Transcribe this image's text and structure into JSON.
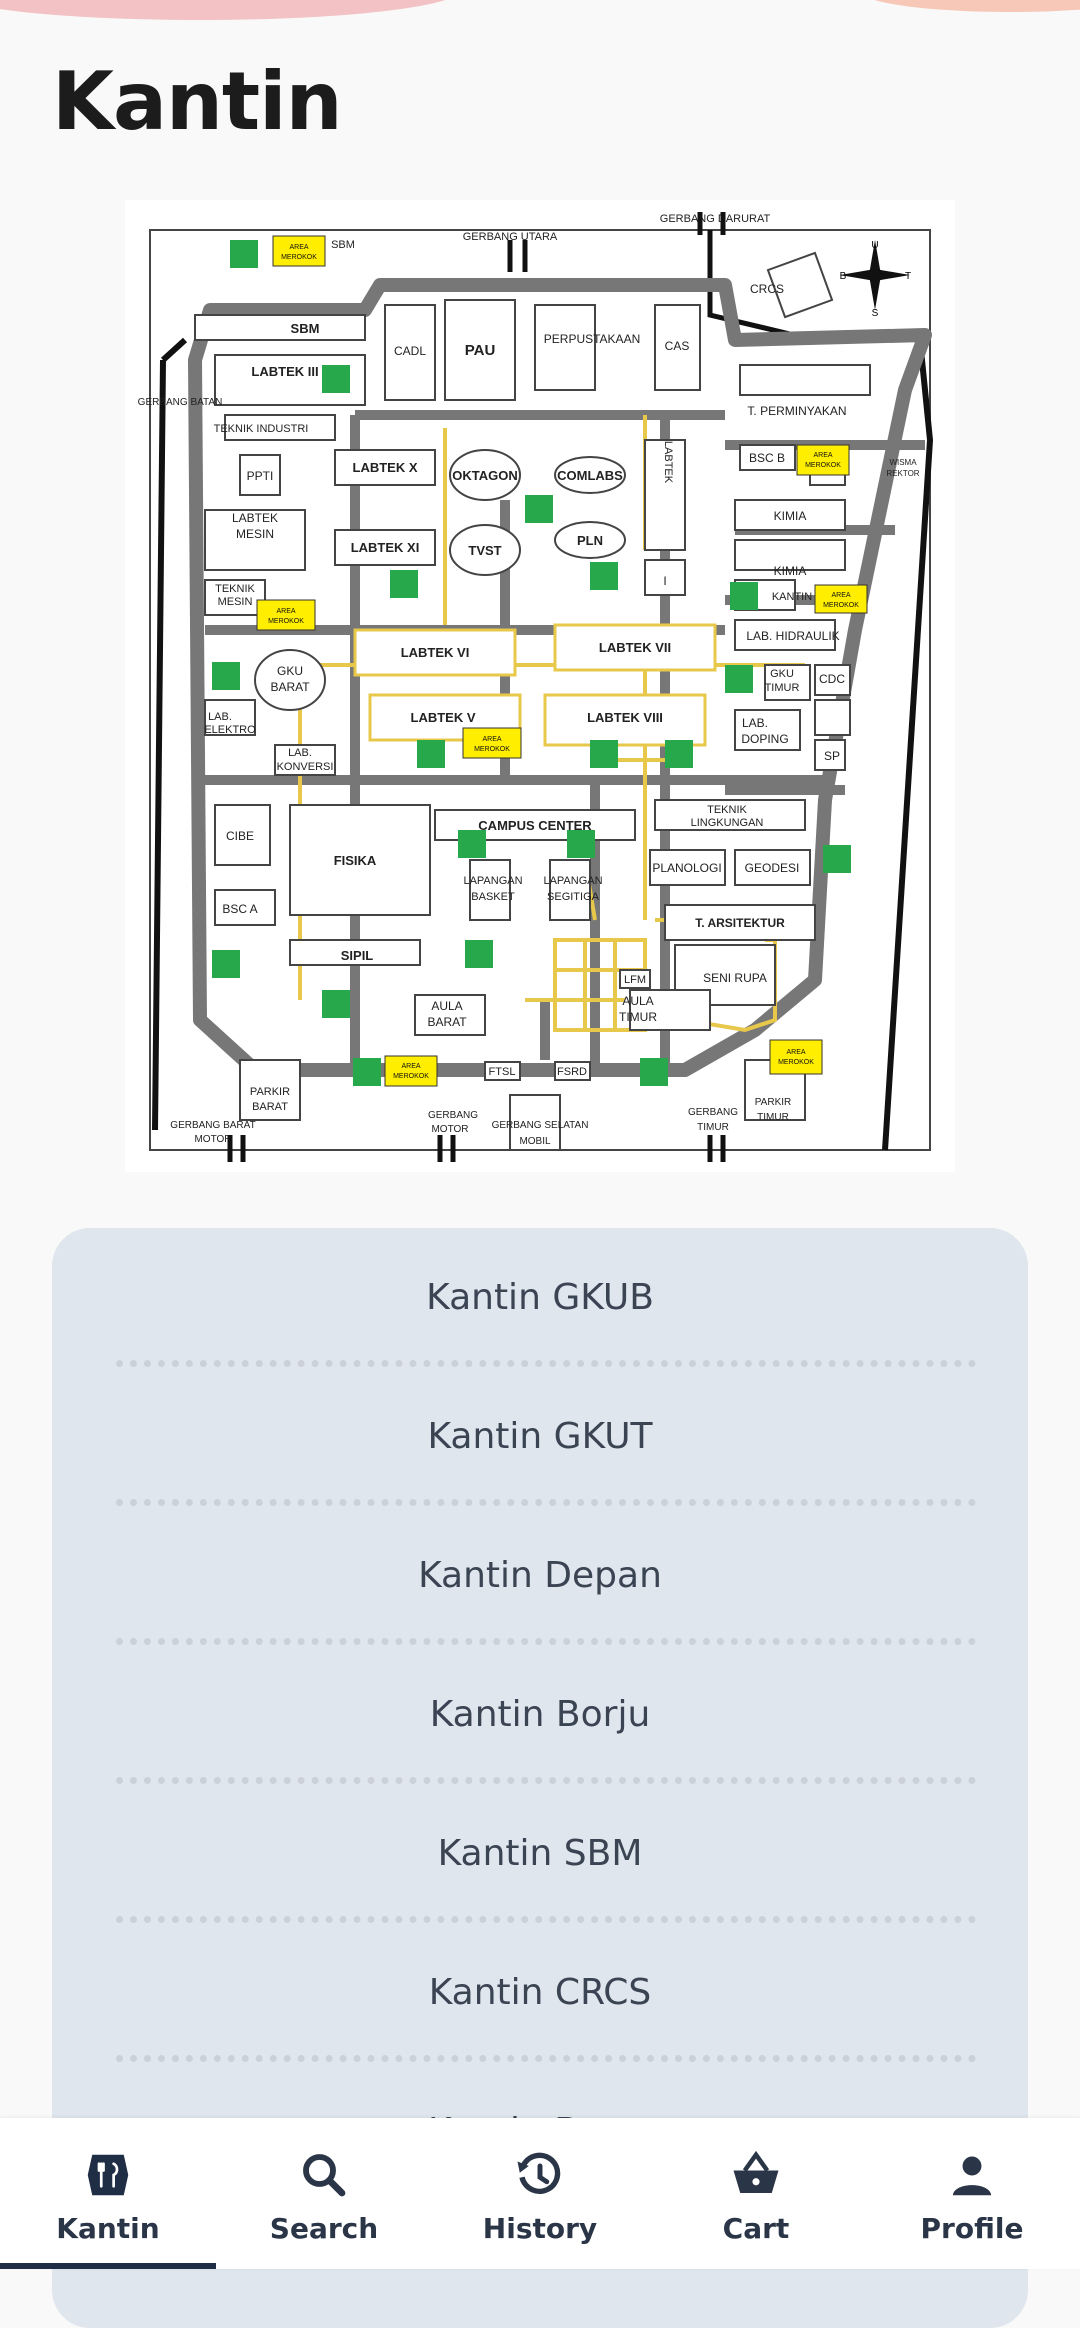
{
  "header": {
    "title": "Kantin"
  },
  "map": {
    "labels": {
      "gerbang_darurat": "GERBANG DARURAT",
      "gerbang_utara": "GERBANG UTARA",
      "sbm_top": "SBM",
      "crcs": "CRCS",
      "sbm": "SBM",
      "labtek_iii": "LABTEK III",
      "cadl": "CADL",
      "pau": "PAU",
      "perpustakaan": "PERPUSTAKAAN",
      "cas": "CAS",
      "gerbang_batan": "GERBANG BATAN",
      "teknik_industri": "TEKNIK INDUSTRI",
      "t_perminyakan": "T. PERMINYAKAN",
      "ppti": "PPTI",
      "labtek_x": "LABTEK X",
      "oktagon": "OKTAGON",
      "comlabs": "COMLABS",
      "bsc_b": "BSC B",
      "wisma": "WISMA",
      "rektor": "REKTOR",
      "labtek_mesin_1": "LABTEK",
      "labtek_mesin_2": "MESIN",
      "kimia1": "KIMIA",
      "labtek_xi": "LABTEK XI",
      "tvst": "TVST",
      "pln": "PLN",
      "labtek_vert": "LABTEK",
      "labtek_vert_i": "I",
      "kimia2": "KIMIA",
      "teknik_mesin_1": "TEKNIK",
      "teknik_mesin_2": "MESIN",
      "kantin": "KANTIN",
      "labtek_vi": "LABTEK VI",
      "labtek_vii": "LABTEK VII",
      "lab_hidraulik": "LAB. HIDRAULIK",
      "gku_barat_1": "GKU",
      "gku_barat_2": "BARAT",
      "gku_timur_1": "GKU",
      "gku_timur_2": "TIMUR",
      "cdc": "CDC",
      "labtek_v": "LABTEK V",
      "labtek_viii": "LABTEK VIII",
      "lab_elektro_1": "LAB.",
      "lab_elektro_2": "ELEKTRO",
      "lab_konversi_1": "LAB.",
      "lab_konversi_2": "KONVERSI",
      "lab_doping_1": "LAB.",
      "lab_doping_2": "DOPING",
      "sp": "SP",
      "teknik_lingkungan_1": "TEKNIK",
      "teknik_lingkungan_2": "LINGKUNGAN",
      "cibe": "CIBE",
      "fisika": "FISIKA",
      "campus_center": "CAMPUS CENTER",
      "planologi": "PLANOLOGI",
      "geodesi": "GEODESI",
      "lap_basket_1": "LAPANGAN",
      "lap_basket_2": "BASKET",
      "lap_segitiga_1": "LAPANGAN",
      "lap_segitiga_2": "SEGITIGA",
      "bsc_a": "BSC A",
      "t_arsitektur": "T. ARSITEKTUR",
      "sipil": "SIPIL",
      "lfm": "LFM",
      "seni_rupa": "SENI RUPA",
      "aula_barat_1": "AULA",
      "aula_barat_2": "BARAT",
      "aula_timur_1": "AULA",
      "aula_timur_2": "TIMUR",
      "parkir_barat_1": "PARKIR",
      "parkir_barat_2": "BARAT",
      "ftsl": "FTSL",
      "fsrd": "FSRD",
      "gerbang_motor_1": "GERBANG",
      "gerbang_motor_2": "MOTOR",
      "gerbang_barat_motor_1": "GERBANG BARAT",
      "gerbang_barat_motor_2": "MOTOR",
      "gerbang_selatan_1": "GERBANG SELATAN",
      "gerbang_selatan_2": "MOBIL",
      "gerbang_timur_1": "GERBANG",
      "gerbang_timur_2": "TIMUR",
      "parkir_timur_1": "PARKIR",
      "parkir_timur_2": "TIMUR",
      "area_merokok_1": "AREA",
      "area_merokok_2": "MEROKOK",
      "compass_u": "U",
      "compass_s": "S",
      "compass_b": "B",
      "compass_t": "T"
    }
  },
  "canteens": [
    "Kantin GKUB",
    "Kantin GKUT",
    "Kantin Depan",
    "Kantin Borju",
    "Kantin SBM",
    "Kantin CRCS",
    "Kantin Barat"
  ],
  "nav": [
    {
      "label": "Kantin",
      "icon": "fork-knife-icon",
      "active": true
    },
    {
      "label": "Search",
      "icon": "search-icon",
      "active": false
    },
    {
      "label": "History",
      "icon": "history-icon",
      "active": false
    },
    {
      "label": "Cart",
      "icon": "basket-icon",
      "active": false
    },
    {
      "label": "Profile",
      "icon": "person-icon",
      "active": false
    }
  ],
  "colors": {
    "background": "#f9f9f9",
    "card": "#e0e6ee",
    "road": "#7a7a7a",
    "path": "#e8c84a",
    "smoking_area": "#ffee00",
    "assembly_point": "#27a84a",
    "nav_active": "#1f2d45"
  }
}
